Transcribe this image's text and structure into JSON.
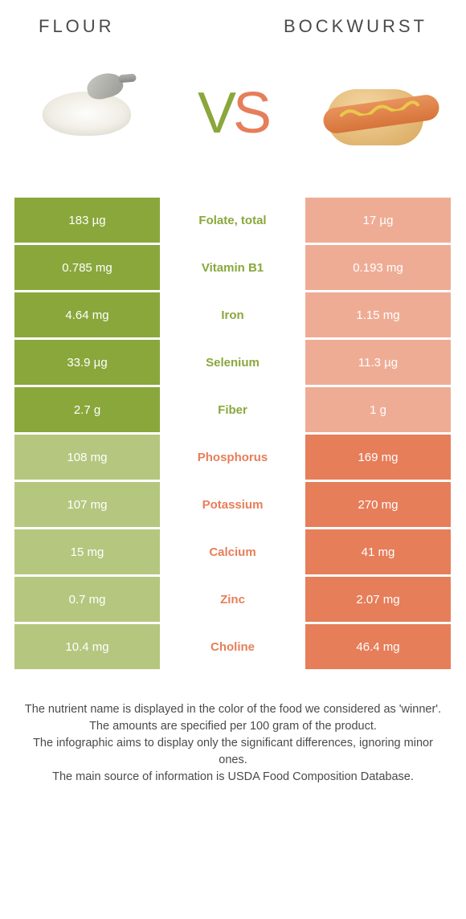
{
  "header": {
    "left_title": "FLOUR",
    "right_title": "BOCKWURST"
  },
  "vs": {
    "v": "V",
    "s": "S"
  },
  "colors": {
    "left_win": "#8aa73c",
    "left_lose": "#b5c77f",
    "right_win": "#e67e5a",
    "right_lose": "#efac95",
    "text_white": "#ffffff"
  },
  "rows": [
    {
      "left": "183 µg",
      "label": "Folate, total",
      "right": "17 µg",
      "winner": "left"
    },
    {
      "left": "0.785 mg",
      "label": "Vitamin B1",
      "right": "0.193 mg",
      "winner": "left"
    },
    {
      "left": "4.64 mg",
      "label": "Iron",
      "right": "1.15 mg",
      "winner": "left"
    },
    {
      "left": "33.9 µg",
      "label": "Selenium",
      "right": "11.3 µg",
      "winner": "left"
    },
    {
      "left": "2.7 g",
      "label": "Fiber",
      "right": "1 g",
      "winner": "left"
    },
    {
      "left": "108 mg",
      "label": "Phosphorus",
      "right": "169 mg",
      "winner": "right"
    },
    {
      "left": "107 mg",
      "label": "Potassium",
      "right": "270 mg",
      "winner": "right"
    },
    {
      "left": "15 mg",
      "label": "Calcium",
      "right": "41 mg",
      "winner": "right"
    },
    {
      "left": "0.7 mg",
      "label": "Zinc",
      "right": "2.07 mg",
      "winner": "right"
    },
    {
      "left": "10.4 mg",
      "label": "Choline",
      "right": "46.4 mg",
      "winner": "right"
    }
  ],
  "footer": {
    "line1": "The nutrient name is displayed in the color of the food we considered as 'winner'.",
    "line2": "The amounts are specified per 100 gram of the product.",
    "line3": "The infographic aims to display only the significant differences, ignoring minor ones.",
    "line4": "The main source of information is USDA Food Composition Database."
  }
}
